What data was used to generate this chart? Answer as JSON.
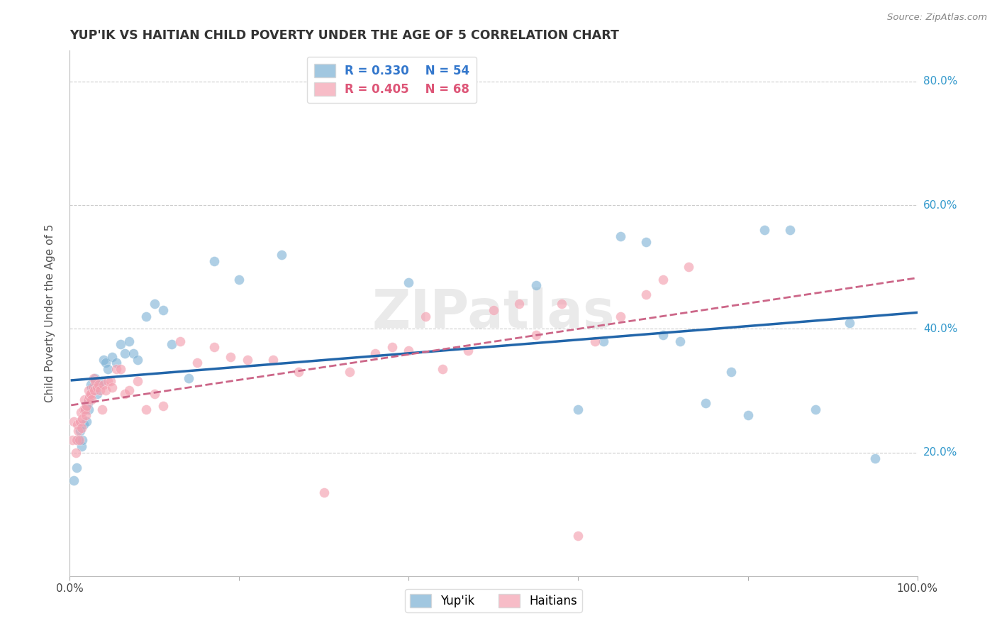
{
  "title": "YUP'IK VS HAITIAN CHILD POVERTY UNDER THE AGE OF 5 CORRELATION CHART",
  "source": "Source: ZipAtlas.com",
  "ylabel": "Child Poverty Under the Age of 5",
  "xlim": [
    0.0,
    1.0
  ],
  "ylim": [
    0.0,
    0.85
  ],
  "ytick_labels": [
    "20.0%",
    "40.0%",
    "60.0%",
    "80.0%"
  ],
  "ytick_vals": [
    0.2,
    0.4,
    0.6,
    0.8
  ],
  "xtick_labels": [
    "0.0%",
    "",
    "",
    "",
    "",
    "100.0%"
  ],
  "xtick_positions": [
    0.0,
    0.2,
    0.4,
    0.6,
    0.8,
    1.0
  ],
  "legend_r_yupik": "R = 0.330",
  "legend_n_yupik": "N = 54",
  "legend_r_haitian": "R = 0.405",
  "legend_n_haitian": "N = 68",
  "watermark": "ZIPatlas",
  "yupik_color": "#7ab0d4",
  "haitian_color": "#f4a0b0",
  "yupik_line_color": "#2266aa",
  "haitian_line_color": "#cc6688",
  "background_color": "#ffffff",
  "grid_color": "#cccccc",
  "yupik_scatter_x": [
    0.005,
    0.008,
    0.01,
    0.012,
    0.014,
    0.015,
    0.016,
    0.018,
    0.018,
    0.02,
    0.021,
    0.022,
    0.024,
    0.025,
    0.026,
    0.028,
    0.03,
    0.032,
    0.035,
    0.037,
    0.04,
    0.042,
    0.045,
    0.05,
    0.055,
    0.06,
    0.065,
    0.07,
    0.075,
    0.08,
    0.09,
    0.1,
    0.11,
    0.12,
    0.14,
    0.17,
    0.2,
    0.25,
    0.4,
    0.55,
    0.6,
    0.63,
    0.65,
    0.68,
    0.7,
    0.72,
    0.75,
    0.78,
    0.8,
    0.82,
    0.85,
    0.88,
    0.92,
    0.95
  ],
  "yupik_scatter_y": [
    0.155,
    0.175,
    0.22,
    0.235,
    0.21,
    0.22,
    0.245,
    0.27,
    0.27,
    0.25,
    0.28,
    0.27,
    0.29,
    0.31,
    0.305,
    0.3,
    0.32,
    0.295,
    0.31,
    0.315,
    0.35,
    0.345,
    0.335,
    0.355,
    0.345,
    0.375,
    0.36,
    0.38,
    0.36,
    0.35,
    0.42,
    0.44,
    0.43,
    0.375,
    0.32,
    0.51,
    0.48,
    0.52,
    0.475,
    0.47,
    0.27,
    0.38,
    0.55,
    0.54,
    0.39,
    0.38,
    0.28,
    0.33,
    0.26,
    0.56,
    0.56,
    0.27,
    0.41,
    0.19
  ],
  "haitian_scatter_x": [
    0.003,
    0.005,
    0.007,
    0.008,
    0.009,
    0.01,
    0.011,
    0.012,
    0.013,
    0.014,
    0.015,
    0.016,
    0.017,
    0.018,
    0.019,
    0.02,
    0.021,
    0.022,
    0.023,
    0.024,
    0.025,
    0.026,
    0.027,
    0.028,
    0.029,
    0.03,
    0.032,
    0.034,
    0.036,
    0.038,
    0.04,
    0.042,
    0.045,
    0.048,
    0.05,
    0.055,
    0.06,
    0.065,
    0.07,
    0.08,
    0.09,
    0.1,
    0.11,
    0.13,
    0.15,
    0.17,
    0.19,
    0.21,
    0.24,
    0.27,
    0.3,
    0.33,
    0.36,
    0.38,
    0.4,
    0.42,
    0.44,
    0.47,
    0.5,
    0.53,
    0.55,
    0.58,
    0.6,
    0.62,
    0.65,
    0.68,
    0.7,
    0.73
  ],
  "haitian_scatter_y": [
    0.22,
    0.25,
    0.2,
    0.22,
    0.245,
    0.235,
    0.22,
    0.25,
    0.265,
    0.24,
    0.255,
    0.27,
    0.285,
    0.27,
    0.26,
    0.275,
    0.285,
    0.3,
    0.29,
    0.295,
    0.295,
    0.285,
    0.305,
    0.32,
    0.3,
    0.315,
    0.305,
    0.31,
    0.3,
    0.27,
    0.31,
    0.3,
    0.315,
    0.315,
    0.305,
    0.335,
    0.335,
    0.295,
    0.3,
    0.315,
    0.27,
    0.295,
    0.275,
    0.38,
    0.345,
    0.37,
    0.355,
    0.35,
    0.35,
    0.33,
    0.135,
    0.33,
    0.36,
    0.37,
    0.365,
    0.42,
    0.335,
    0.365,
    0.43,
    0.44,
    0.39,
    0.44,
    0.065,
    0.38,
    0.42,
    0.455,
    0.48,
    0.5
  ]
}
